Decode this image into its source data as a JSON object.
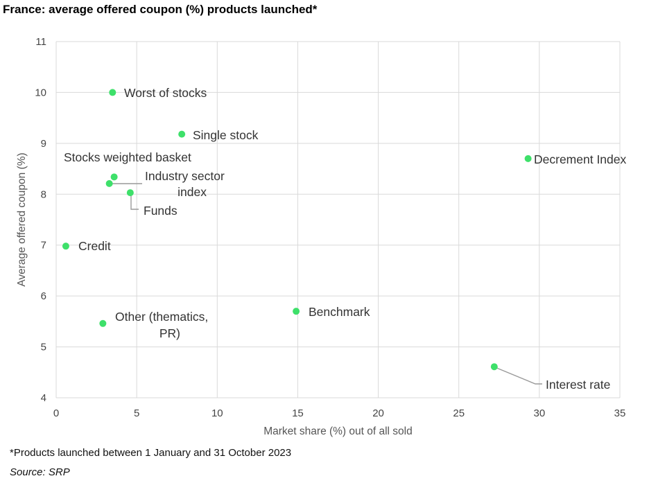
{
  "title": "France: average offered coupon (%) products launched*",
  "footnote": "*Products launched between 1 January and 31 October 2023",
  "source": "Source: SRP",
  "chart_data": {
    "type": "scatter",
    "xlabel": "Market share (%) out of all sold",
    "ylabel": "Average offered coupon (%)",
    "xlim": [
      0,
      35
    ],
    "ylim": [
      4,
      11
    ],
    "xticks": [
      0,
      5,
      10,
      15,
      20,
      25,
      30,
      35
    ],
    "yticks": [
      4,
      5,
      6,
      7,
      8,
      9,
      10,
      11
    ],
    "grid": true,
    "point_color": "#3ee06a",
    "points": [
      {
        "label": "Worst of stocks",
        "x": 3.5,
        "y": 10.0
      },
      {
        "label": "Single stock",
        "x": 7.8,
        "y": 9.18
      },
      {
        "label": "Decrement Index",
        "x": 29.3,
        "y": 8.7
      },
      {
        "label": "Stocks weighted basket",
        "x": 3.6,
        "y": 8.34
      },
      {
        "label": "Industry sector index",
        "x": 3.3,
        "y": 8.21
      },
      {
        "label": "Funds",
        "x": 4.6,
        "y": 8.03
      },
      {
        "label": "Credit",
        "x": 0.6,
        "y": 6.98
      },
      {
        "label": "Benchmark",
        "x": 14.9,
        "y": 5.7
      },
      {
        "label": "Other (thematics, PR)",
        "x": 2.9,
        "y": 5.46
      },
      {
        "label": "Interest rate",
        "x": 27.2,
        "y": 4.61
      }
    ]
  }
}
